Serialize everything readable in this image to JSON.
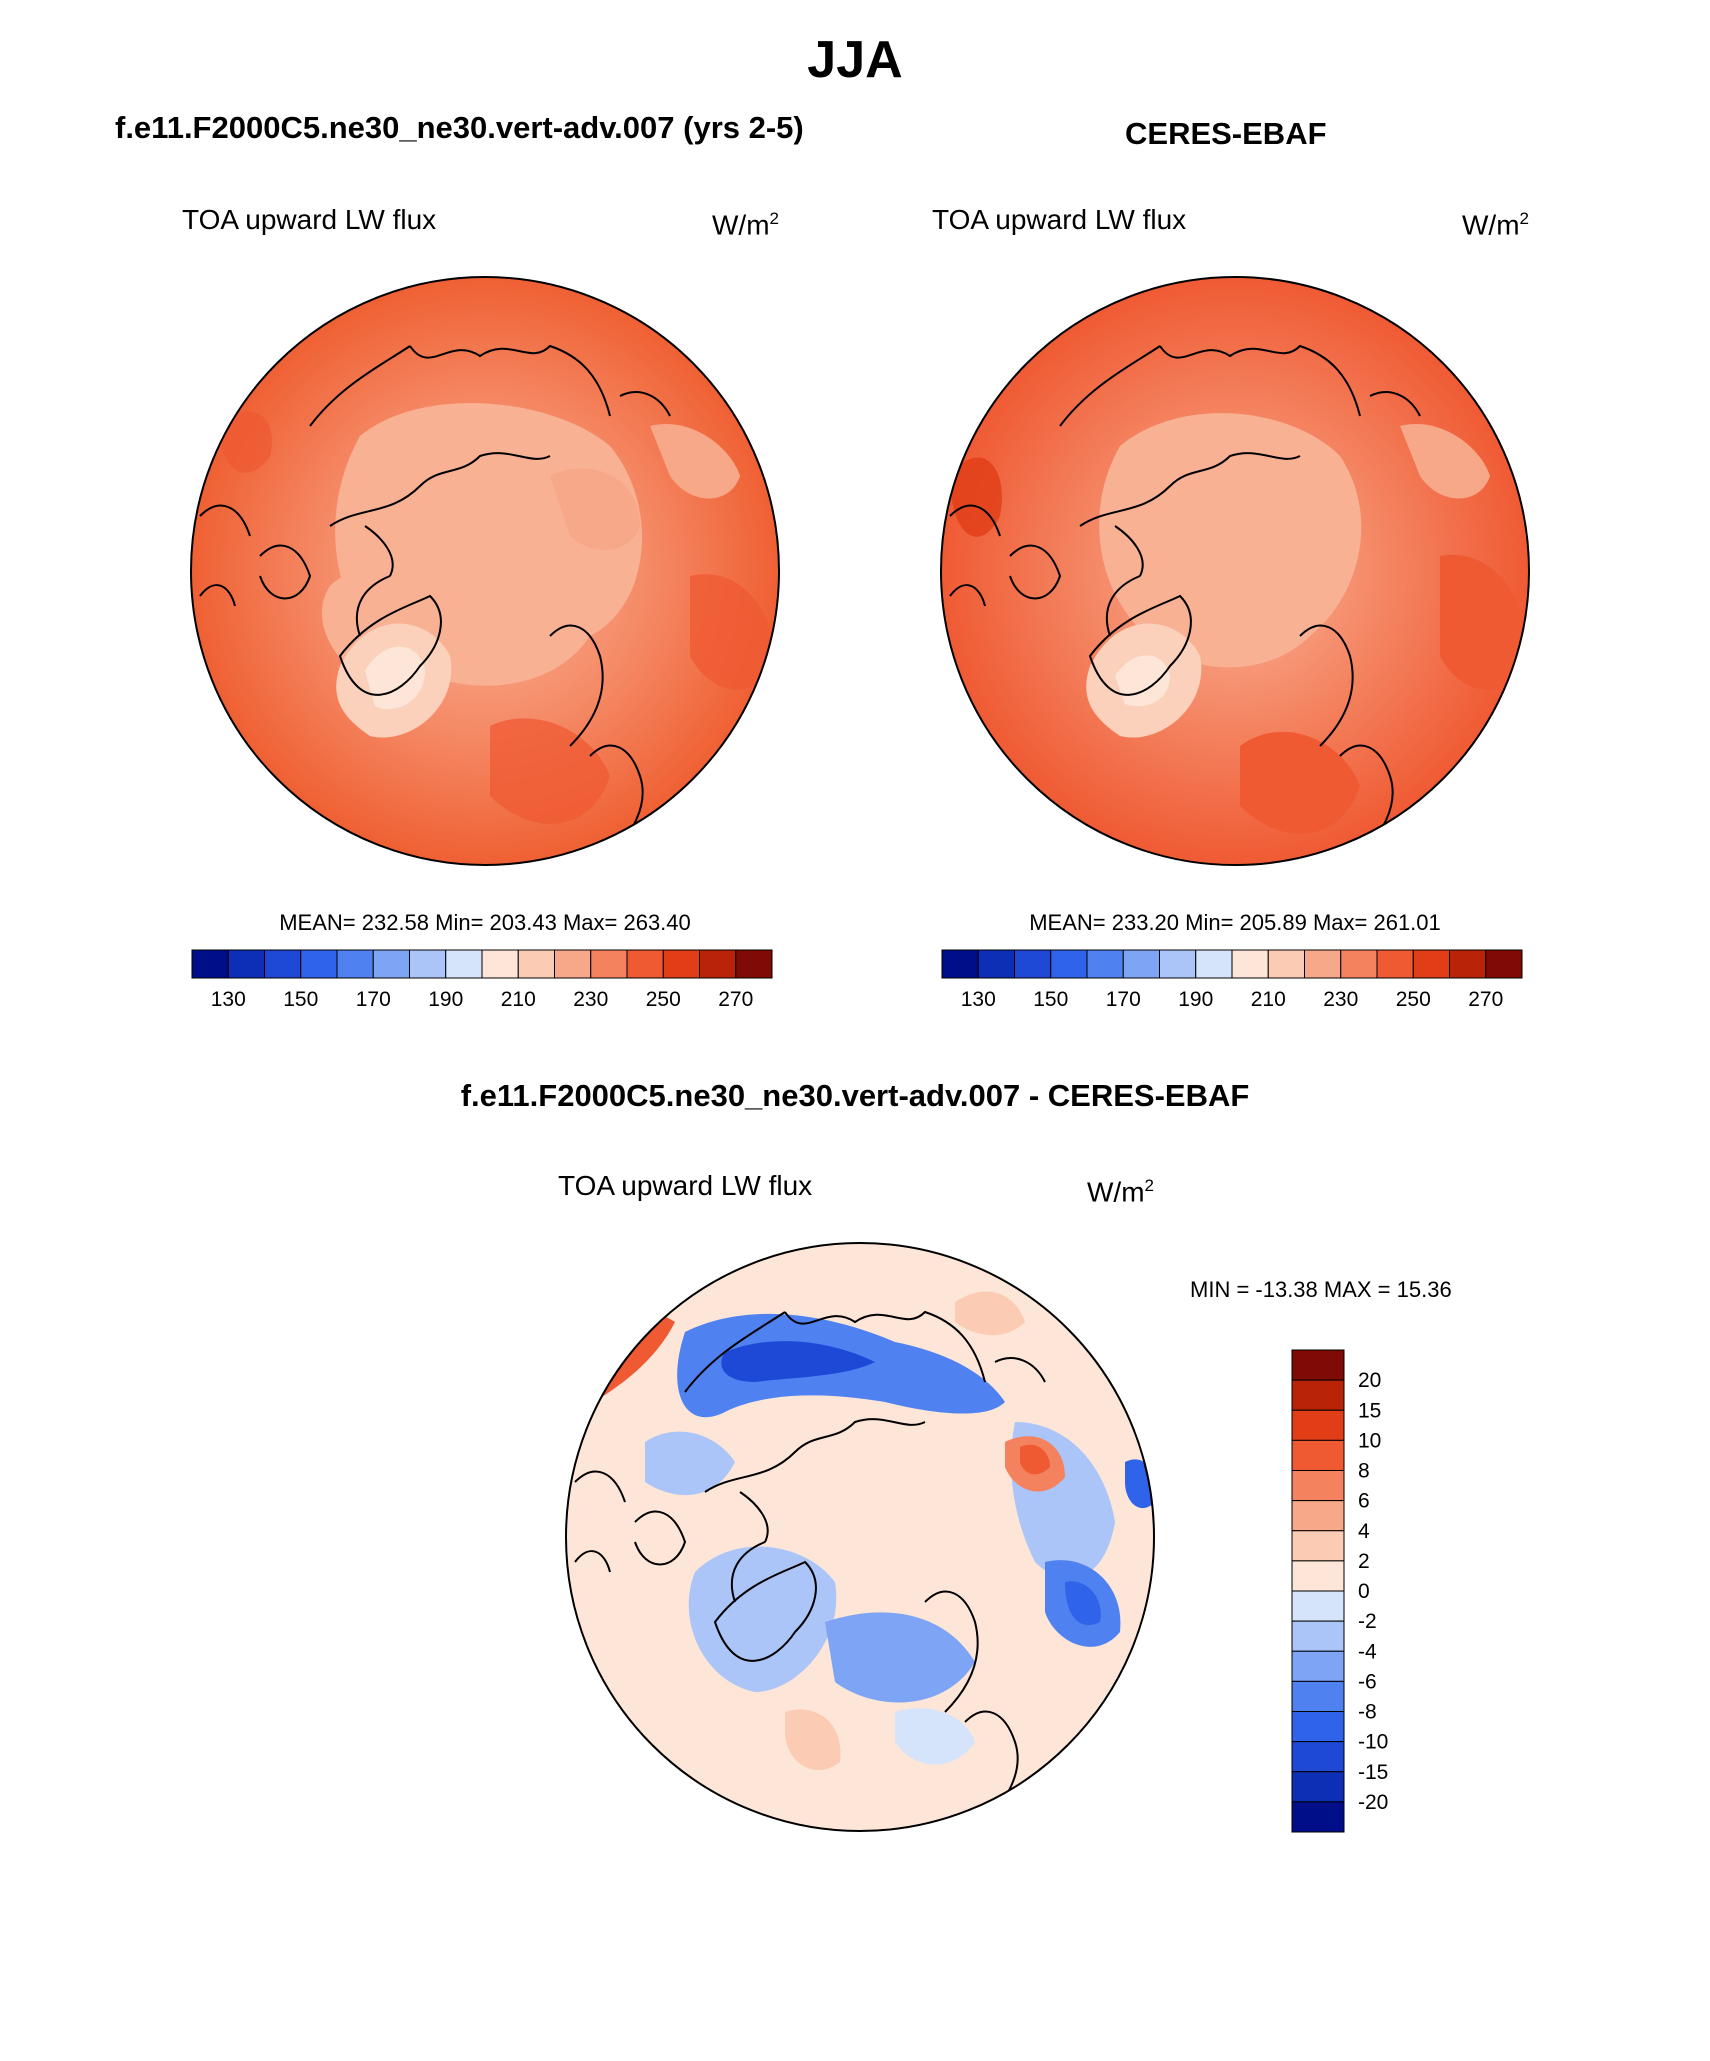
{
  "title": "JJA",
  "panels": [
    {
      "id": "model",
      "title": "f.e11.F2000C5.ne30_ne30.vert-adv.007 (yrs 2-5)",
      "variable": "TOA upward LW flux",
      "units_base": "W/m",
      "units_exp": "2",
      "stats": {
        "mean": "232.58",
        "min": "203.43",
        "max": "263.40"
      },
      "stats_text": "MEAN= 232.58  Min= 203.43  Max= 263.40"
    },
    {
      "id": "obs",
      "title": "CERES-EBAF",
      "variable": "TOA upward LW flux",
      "units_base": "W/m",
      "units_exp": "2",
      "stats": {
        "mean": "233.20",
        "min": "205.89",
        "max": "261.01"
      },
      "stats_text": "MEAN= 233.20  Min= 205.89  Max= 261.01"
    },
    {
      "id": "diff",
      "title": "f.e11.F2000C5.ne30_ne30.vert-adv.007 - CERES-EBAF",
      "variable": "TOA upward LW flux",
      "units_base": "W/m",
      "units_exp": "2",
      "stats": {
        "min": "-13.38",
        "max": "15.36"
      },
      "stats_text": "MIN = -13.38 MAX =  15.36"
    }
  ],
  "abs_colorbar": {
    "colors": [
      "#000e8a",
      "#0d2fb6",
      "#1e49d6",
      "#2e63ea",
      "#4f82f0",
      "#7ea5f5",
      "#abc5f8",
      "#d6e4fb",
      "#fde6d8",
      "#fccbb3",
      "#f7a888",
      "#f4825f",
      "#ef5a33",
      "#e13d17",
      "#b92409",
      "#7e0b05"
    ],
    "tick_labels": [
      "130",
      "150",
      "170",
      "190",
      "210",
      "230",
      "250",
      "270"
    ]
  },
  "diff_colorbar": {
    "colors": [
      "#000e8a",
      "#0d2fb6",
      "#1e49d6",
      "#2e63ea",
      "#4f82f0",
      "#7ea5f5",
      "#abc5f8",
      "#d6e4fb",
      "#fde6d8",
      "#fccbb3",
      "#f7a888",
      "#f4825f",
      "#ef5a33",
      "#e13d17",
      "#b92409",
      "#7e0b05"
    ],
    "tick_labels": [
      "20",
      "15",
      "10",
      "8",
      "6",
      "4",
      "2",
      "0",
      "-2",
      "-4",
      "-6",
      "-8",
      "-10",
      "-15",
      "-20"
    ]
  }
}
